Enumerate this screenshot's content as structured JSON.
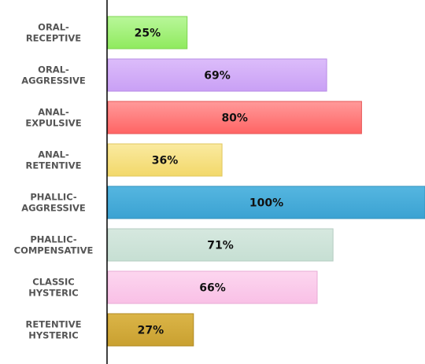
{
  "chart_data": {
    "type": "bar",
    "orientation": "horizontal",
    "categories": [
      [
        "ORAL-",
        "RECEPTIVE"
      ],
      [
        "ORAL-",
        "AGGRESSIVE"
      ],
      [
        "ANAL-",
        "EXPULSIVE"
      ],
      [
        "ANAL-",
        "RETENTIVE"
      ],
      [
        "PHALLIC-",
        "AGGRESSIVE"
      ],
      [
        "PHALLIC-",
        "COMPENSATIVE"
      ],
      [
        "CLASSIC",
        "HYSTERIC"
      ],
      [
        "RETENTIVE",
        "HYSTERIC"
      ]
    ],
    "values": [
      25,
      69,
      80,
      36,
      100,
      71,
      66,
      27
    ],
    "value_labels": [
      "25%",
      "69%",
      "80%",
      "36%",
      "100%",
      "71%",
      "66%",
      "27%"
    ],
    "colors": [
      {
        "top": "#b9f79a",
        "bottom": "#8fea5e",
        "stroke": "#7fd452"
      },
      {
        "top": "#dcbcfa",
        "bottom": "#c9a0f5",
        "stroke": "#b98ce6"
      },
      {
        "top": "#ff9a9a",
        "bottom": "#ff6464",
        "stroke": "#e55757"
      },
      {
        "top": "#faeaa0",
        "bottom": "#f2d86a",
        "stroke": "#e0c75d"
      },
      {
        "top": "#55b6e0",
        "bottom": "#3ba2d2",
        "stroke": "#3292bd"
      },
      {
        "top": "#d6e8df",
        "bottom": "#c6dfd3",
        "stroke": "#b5ccc1"
      },
      {
        "top": "#fcd6ef",
        "bottom": "#f9c0e6",
        "stroke": "#e8abd6"
      },
      {
        "top": "#dbb548",
        "bottom": "#c9a030",
        "stroke": "#b08a22"
      }
    ],
    "xlim": [
      0,
      100
    ],
    "grid": false
  }
}
